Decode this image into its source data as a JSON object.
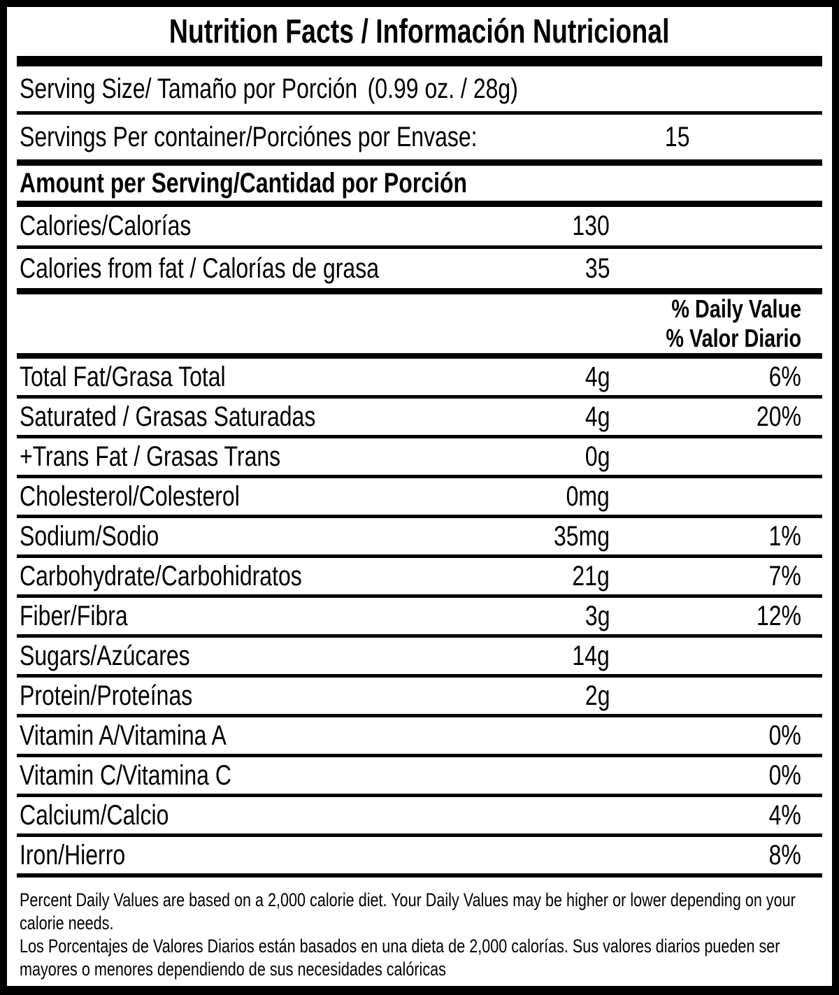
{
  "title": "Nutrition Facts / Información Nutricional",
  "serving": {
    "size_label": "Serving Size/ Tamaño por Porción",
    "size_value": "(0.99 oz. / 28g)",
    "per_container_label": "Servings Per container/Porciónes por Envase:",
    "per_container_value": "15"
  },
  "amount_header": "Amount per Serving/Cantidad por Porción",
  "calories": [
    {
      "label": "Calories/Calorías",
      "amount": "130"
    },
    {
      "label": "Calories from fat / Calorías de grasa",
      "amount": "35"
    }
  ],
  "daily_value_header": {
    "en": "% Daily Value",
    "es": "% Valor Diario"
  },
  "nutrients": [
    {
      "label": "Total Fat/Grasa Total",
      "amount": "4g",
      "dv": "6%"
    },
    {
      "label": "Saturated / Grasas Saturadas",
      "amount": "4g",
      "dv": "20%"
    },
    {
      "label": "+Trans Fat / Grasas Trans",
      "amount": "0g",
      "dv": ""
    },
    {
      "label": "Cholesterol/Colesterol",
      "amount": "0mg",
      "dv": ""
    },
    {
      "label": "Sodium/Sodio",
      "amount": "35mg",
      "dv": "1%"
    },
    {
      "label": "Carbohydrate/Carbohidratos",
      "amount": "21g",
      "dv": "7%"
    },
    {
      "label": "Fiber/Fibra",
      "amount": "3g",
      "dv": "12%"
    },
    {
      "label": "Sugars/Azúcares",
      "amount": "14g",
      "dv": ""
    },
    {
      "label": "Protein/Proteínas",
      "amount": "2g",
      "dv": ""
    },
    {
      "label": "Vitamin A/Vitamina A",
      "amount": "",
      "dv": "0%"
    },
    {
      "label": "Vitamin C/Vitamina C",
      "amount": "",
      "dv": "0%"
    },
    {
      "label": "Calcium/Calcio",
      "amount": "",
      "dv": "4%"
    },
    {
      "label": "Iron/Hierro",
      "amount": "",
      "dv": "8%"
    }
  ],
  "footnotes": {
    "en": "Percent Daily Values are based on a 2,000 calorie diet. Your Daily Values may be higher or lower depending on your calorie needs.",
    "es": "Los Porcentajes de Valores Diarios están basados en una dieta de 2,000 calorías. Sus valores diarios pueden ser mayores o menores dependiendo de sus necesidades calóricas"
  }
}
